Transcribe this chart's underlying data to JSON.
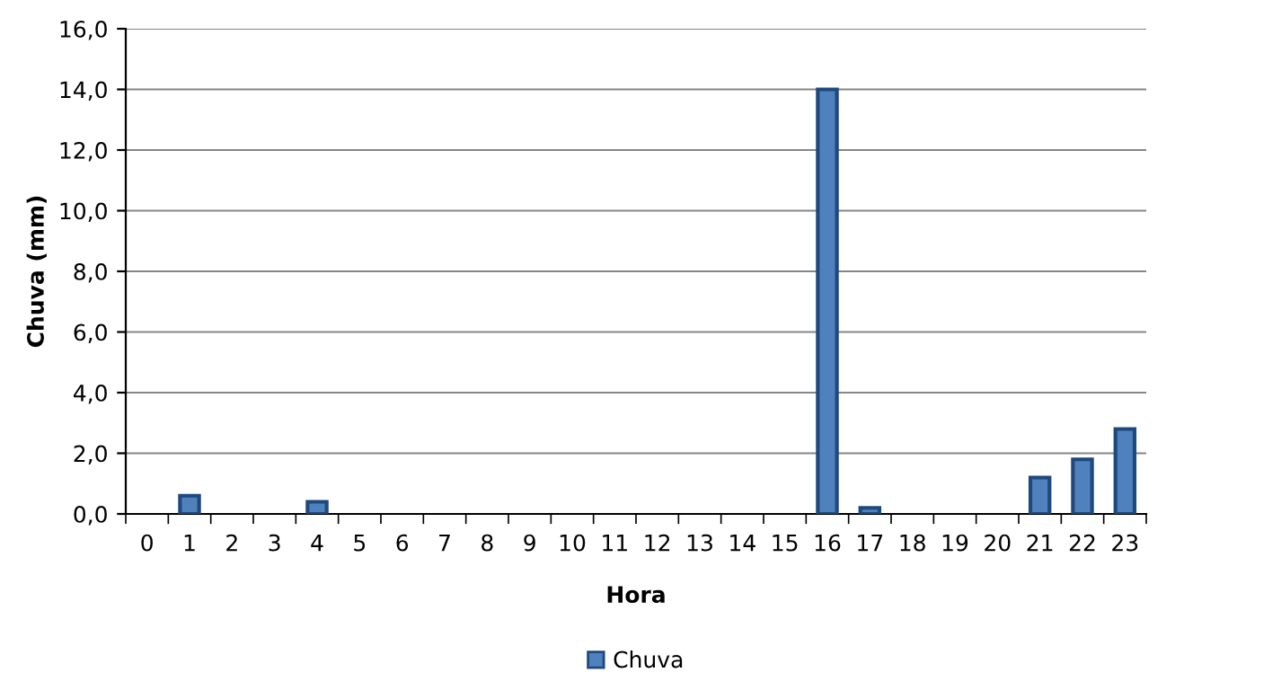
{
  "chart_data": {
    "type": "bar",
    "xlabel": "Hora",
    "ylabel": "Chuva (mm)",
    "categories": [
      "0",
      "1",
      "2",
      "3",
      "4",
      "5",
      "6",
      "7",
      "8",
      "9",
      "10",
      "11",
      "12",
      "13",
      "14",
      "15",
      "16",
      "17",
      "18",
      "19",
      "20",
      "21",
      "22",
      "23"
    ],
    "series": [
      {
        "name": "Chuva",
        "color": "#4f81bd",
        "values": [
          0,
          0.6,
          0,
          0,
          0.4,
          0,
          0,
          0,
          0,
          0,
          0,
          0,
          0,
          0,
          0,
          0,
          14.0,
          0.2,
          0,
          0,
          0,
          1.2,
          1.8,
          2.8
        ]
      }
    ],
    "ylim": [
      0,
      16
    ],
    "yticks": [
      {
        "value": 0,
        "label": "0,0"
      },
      {
        "value": 2,
        "label": "2,0"
      },
      {
        "value": 4,
        "label": "4,0"
      },
      {
        "value": 6,
        "label": "6,0"
      },
      {
        "value": 8,
        "label": "8,0"
      },
      {
        "value": 10,
        "label": "10,0"
      },
      {
        "value": 12,
        "label": "12,0"
      },
      {
        "value": 14,
        "label": "14,0"
      },
      {
        "value": 16,
        "label": "16,0"
      }
    ],
    "grid": "y",
    "legend": "bottom"
  }
}
